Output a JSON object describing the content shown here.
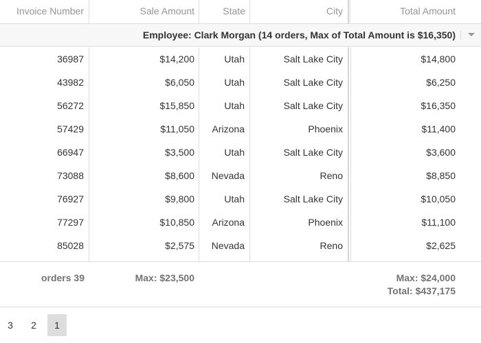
{
  "columns": {
    "invoice_number": "Invoice Number",
    "sale_amount": "Sale Amount",
    "state": "State",
    "city": "City",
    "total_amount": "Total Amount"
  },
  "group": {
    "label": "Employee: Clark Morgan (14 orders, Max of Total Amount is $16,350)"
  },
  "rows": [
    {
      "invoice": "36987",
      "sale": "$14,200",
      "state": "Utah",
      "city": "Salt Lake City",
      "total": "$14,800"
    },
    {
      "invoice": "43982",
      "sale": "$6,050",
      "state": "Utah",
      "city": "Salt Lake City",
      "total": "$6,250"
    },
    {
      "invoice": "56272",
      "sale": "$15,850",
      "state": "Utah",
      "city": "Salt Lake City",
      "total": "$16,350"
    },
    {
      "invoice": "57429",
      "sale": "$11,050",
      "state": "Arizona",
      "city": "Phoenix",
      "total": "$11,400"
    },
    {
      "invoice": "66947",
      "sale": "$3,500",
      "state": "Utah",
      "city": "Salt Lake City",
      "total": "$3,600"
    },
    {
      "invoice": "73088",
      "sale": "$8,600",
      "state": "Nevada",
      "city": "Reno",
      "total": "$8,850"
    },
    {
      "invoice": "76927",
      "sale": "$9,800",
      "state": "Utah",
      "city": "Salt Lake City",
      "total": "$10,050"
    },
    {
      "invoice": "77297",
      "sale": "$10,850",
      "state": "Arizona",
      "city": "Phoenix",
      "total": "$11,100"
    },
    {
      "invoice": "85028",
      "sale": "$2,575",
      "state": "Nevada",
      "city": "Reno",
      "total": "$2,625"
    }
  ],
  "summary": {
    "orders": "orders 39",
    "sale_max": "Max: $23,500",
    "total_max": "Max: $24,000",
    "total_sum": "Total: $437,175"
  },
  "pager": {
    "pages": [
      "3",
      "2",
      "1"
    ],
    "active": "1"
  }
}
